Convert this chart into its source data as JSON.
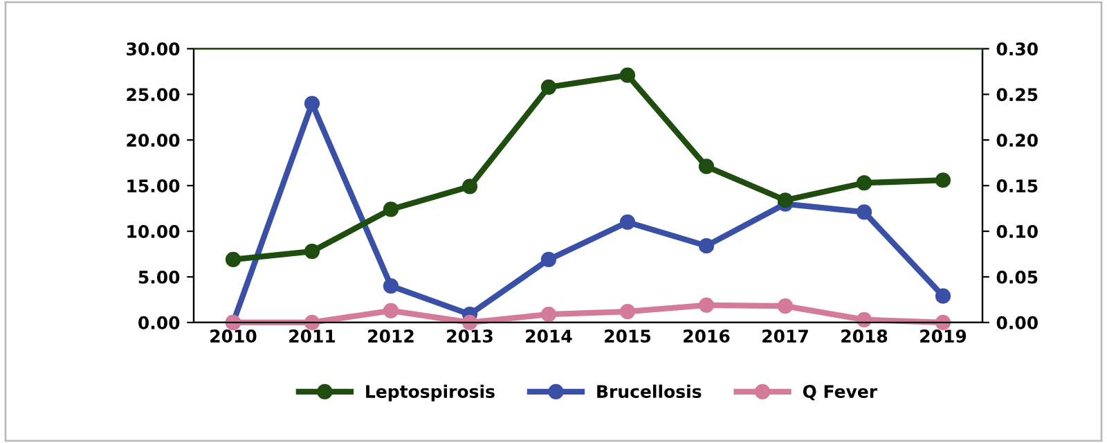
{
  "chart_data": {
    "type": "line",
    "categories": [
      "2010",
      "2011",
      "2012",
      "2013",
      "2014",
      "2015",
      "2016",
      "2017",
      "2018",
      "2019"
    ],
    "series": [
      {
        "name": "Leptospirosis",
        "color": "#1e4d0f",
        "values": [
          6.9,
          7.8,
          12.4,
          14.9,
          25.8,
          27.1,
          17.1,
          13.4,
          15.3,
          15.6
        ]
      },
      {
        "name": "Brucellosis",
        "color": "#3a4fa6",
        "axis": "y2",
        "values": [
          0.0,
          0.24,
          0.04,
          0.009,
          0.069,
          0.11,
          0.084,
          0.13,
          0.121,
          0.029
        ]
      },
      {
        "name": "Q Fever",
        "color": "#d47a9a",
        "axis": "y2",
        "values": [
          0.0,
          0.0,
          0.013,
          0.0,
          0.009,
          0.012,
          0.019,
          0.018,
          0.003,
          0.0
        ]
      }
    ],
    "ylim": [
      0,
      30
    ],
    "yticks": [
      {
        "value": 0,
        "label": "0.00"
      },
      {
        "value": 5,
        "label": "5.00"
      },
      {
        "value": 10,
        "label": "10.00"
      },
      {
        "value": 15,
        "label": "15.00"
      },
      {
        "value": 20,
        "label": "20.00"
      },
      {
        "value": 25,
        "label": "25.00"
      },
      {
        "value": 30,
        "label": "30.00"
      }
    ],
    "y2lim": [
      0,
      0.3
    ],
    "y2ticks": [
      {
        "value": 0,
        "label": "0.00"
      },
      {
        "value": 0.05,
        "label": "0.05"
      },
      {
        "value": 0.1,
        "label": "0.10"
      },
      {
        "value": 0.15,
        "label": "0.15"
      },
      {
        "value": 0.2,
        "label": "0.20"
      },
      {
        "value": 0.25,
        "label": "0.25"
      },
      {
        "value": 0.3,
        "label": "0.30"
      }
    ],
    "marker": "circle",
    "line_style": "solid",
    "grid": false,
    "legend": "bottom"
  }
}
